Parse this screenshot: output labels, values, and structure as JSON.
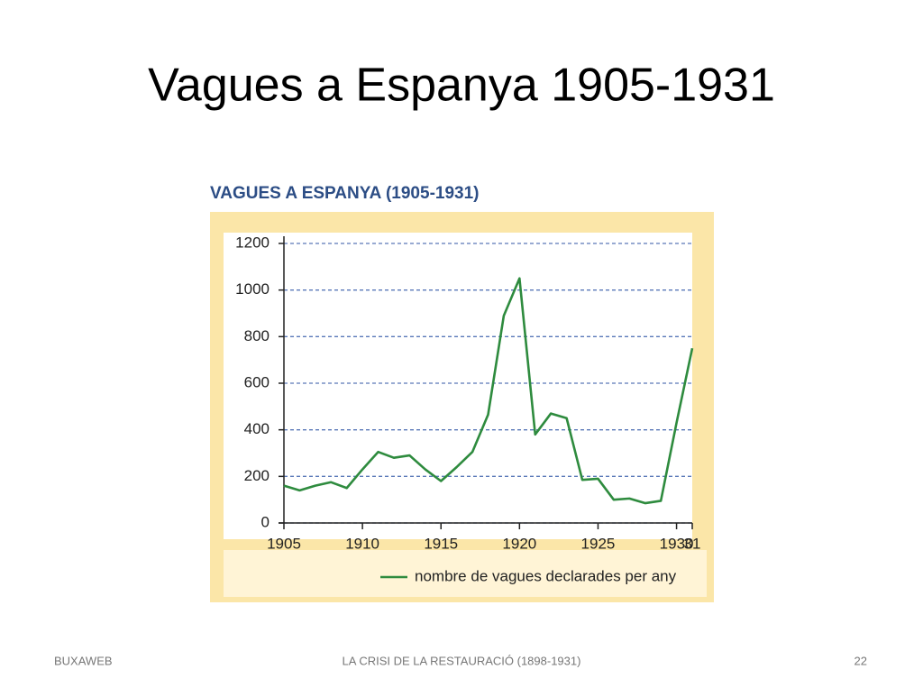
{
  "slide_title": "Vagues a Espanya 1905-1931",
  "chart_data": {
    "type": "line",
    "title": "VAGUES A ESPANYA (1905-1931)",
    "x": [
      1905,
      1906,
      1907,
      1908,
      1909,
      1910,
      1911,
      1912,
      1913,
      1914,
      1915,
      1916,
      1917,
      1918,
      1919,
      1920,
      1921,
      1922,
      1923,
      1924,
      1925,
      1926,
      1927,
      1928,
      1929,
      1930,
      1931
    ],
    "series": [
      {
        "name": "nombre de vagues declarades per any",
        "color": "#2e8b3e",
        "values": [
          160,
          140,
          160,
          175,
          150,
          230,
          305,
          280,
          290,
          230,
          180,
          240,
          305,
          465,
          890,
          1050,
          380,
          470,
          450,
          185,
          190,
          100,
          105,
          85,
          95,
          430,
          750
        ]
      }
    ],
    "xlim": [
      1905,
      1931
    ],
    "xticks": [
      1905,
      1910,
      1915,
      1920,
      1925,
      1930,
      {
        "value": 1931,
        "label": "31"
      }
    ],
    "ylim": [
      0,
      1200
    ],
    "yticks": [
      0,
      200,
      400,
      600,
      800,
      1000,
      1200
    ],
    "grid": true
  },
  "footer": {
    "left": "BUXAWEB",
    "center": "LA CRISI DE LA RESTAURACIÓ (1898-1931)",
    "right": "22"
  }
}
